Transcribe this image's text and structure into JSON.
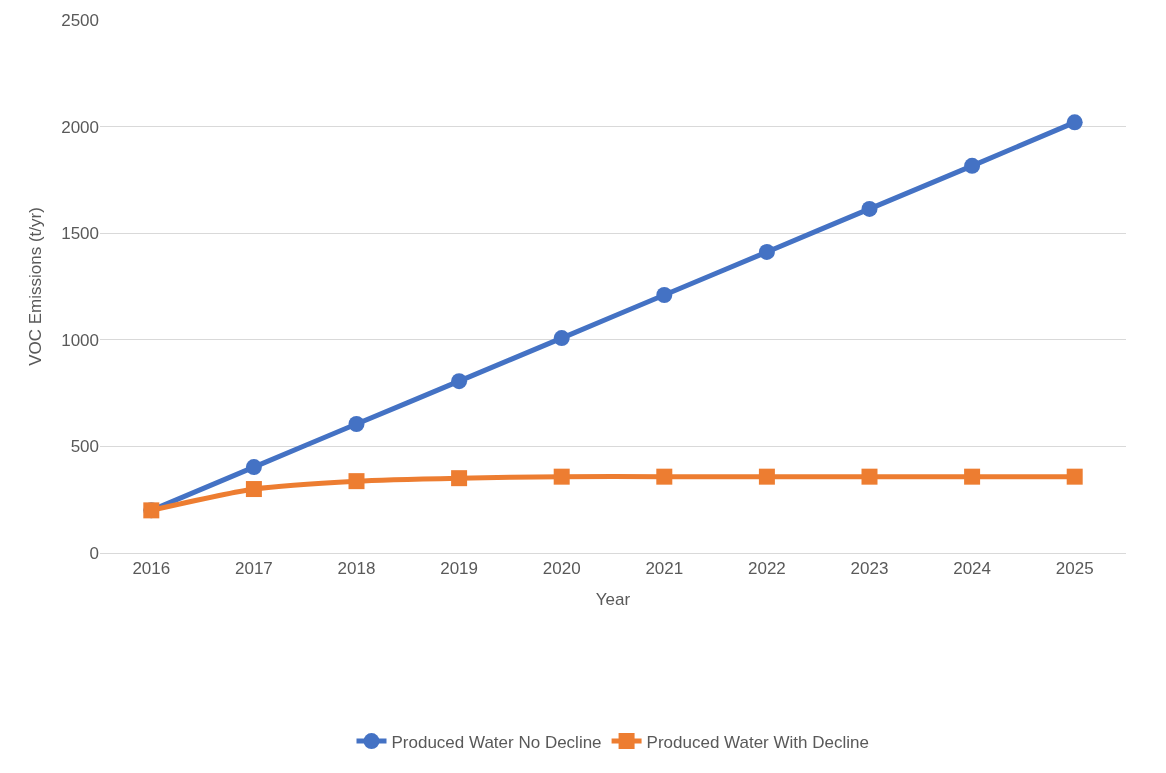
{
  "chart_data": {
    "type": "line",
    "xlabel": "Year",
    "ylabel": "VOC Emissions (t/yr)",
    "categories": [
      "2016",
      "2017",
      "2018",
      "2019",
      "2020",
      "2021",
      "2022",
      "2023",
      "2024",
      "2025"
    ],
    "series": [
      {
        "name": "Produced Water No Decline",
        "color": "#4472c4",
        "marker": "circle",
        "values": [
          200,
          403,
          605,
          806,
          1008,
          1210,
          1412,
          1614,
          1816,
          2020
        ]
      },
      {
        "name": "Produced Water With Decline",
        "color": "#ed7d31",
        "marker": "square",
        "values": [
          200,
          300,
          337,
          351,
          358,
          358,
          358,
          358,
          358,
          358
        ]
      }
    ],
    "ylim": [
      0,
      2500
    ],
    "yticks": [
      0,
      500,
      1000,
      1500,
      2000,
      2500
    ],
    "grid": "y",
    "legend": "bottom",
    "line_style": "solid"
  }
}
